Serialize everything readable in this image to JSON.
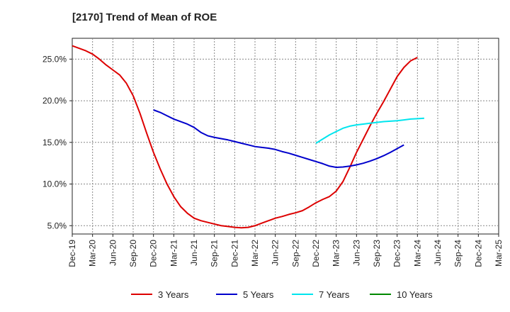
{
  "chart_data": {
    "type": "line",
    "title": "[2170]  Trend of Mean of ROE",
    "xlabel": "",
    "ylabel": "",
    "x_ticks": [
      "Dec-19",
      "Mar-20",
      "Jun-20",
      "Sep-20",
      "Dec-20",
      "Mar-21",
      "Jun-21",
      "Sep-21",
      "Dec-21",
      "Mar-22",
      "Jun-22",
      "Sep-22",
      "Dec-22",
      "Mar-23",
      "Jun-23",
      "Sep-23",
      "Dec-23",
      "Mar-24",
      "Jun-24",
      "Sep-24",
      "Dec-24",
      "Mar-25"
    ],
    "y_ticks": [
      5.0,
      10.0,
      15.0,
      20.0,
      25.0
    ],
    "y_tick_labels": [
      "5.0%",
      "10.0%",
      "15.0%",
      "20.0%",
      "25.0%"
    ],
    "ylim": [
      4.0,
      27.5
    ],
    "grid": true,
    "legend_position": "bottom",
    "series": [
      {
        "name": "3 Years",
        "color": "#dd0000",
        "start_index": 0,
        "values": [
          26.6,
          26.3,
          26.0,
          25.6,
          25.0,
          24.3,
          23.7,
          23.1,
          22.1,
          20.6,
          18.5,
          16.1,
          13.8,
          11.8,
          10.0,
          8.5,
          7.3,
          6.5,
          5.9,
          5.6,
          5.4,
          5.2,
          5.0,
          4.9,
          4.8,
          4.75,
          4.8,
          5.0,
          5.3,
          5.6,
          5.9,
          6.1,
          6.35,
          6.55,
          6.8,
          7.25,
          7.75,
          8.15,
          8.5,
          9.15,
          10.3,
          12.0,
          13.8,
          15.4,
          17.0,
          18.5,
          19.9,
          21.4,
          22.9,
          24.0,
          24.8,
          25.2
        ]
      },
      {
        "name": "5 Years",
        "color": "#0000cc",
        "start_index": 12,
        "values": [
          18.9,
          18.6,
          18.2,
          17.8,
          17.5,
          17.2,
          16.8,
          16.2,
          15.8,
          15.6,
          15.45,
          15.3,
          15.1,
          14.9,
          14.7,
          14.5,
          14.4,
          14.3,
          14.15,
          13.9,
          13.7,
          13.45,
          13.2,
          12.95,
          12.7,
          12.45,
          12.15,
          12.0,
          12.05,
          12.15,
          12.3,
          12.5,
          12.75,
          13.05,
          13.4,
          13.8,
          14.25,
          14.7
        ]
      },
      {
        "name": "7 Years",
        "color": "#00e5ee",
        "start_index": 36,
        "values": [
          14.9,
          15.4,
          15.9,
          16.3,
          16.7,
          16.95,
          17.1,
          17.2,
          17.3,
          17.4,
          17.5,
          17.55,
          17.6,
          17.7,
          17.8,
          17.85,
          17.9
        ]
      },
      {
        "name": "10 Years",
        "color": "#008800",
        "start_index": 0,
        "values": []
      }
    ]
  }
}
